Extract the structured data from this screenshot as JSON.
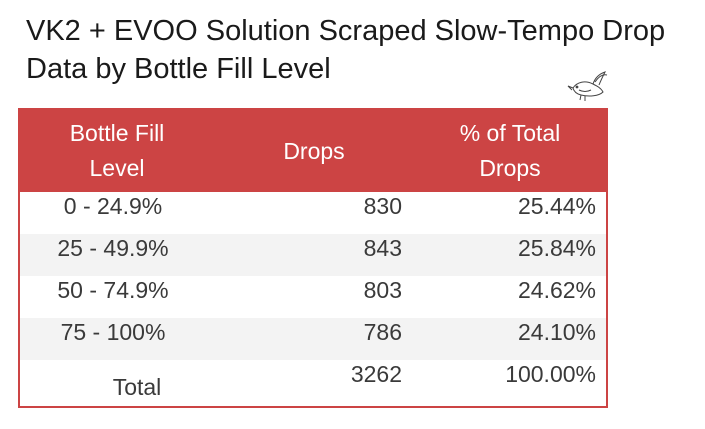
{
  "chart_data": {
    "type": "table",
    "title": "VK2 + EVOO Solution Scraped Slow-Tempo Drop Data by Bottle Fill Level",
    "columns": [
      "Bottle Fill Level",
      "Drops",
      "% of Total Drops"
    ],
    "rows": [
      {
        "level": "0 - 24.9%",
        "drops": "830",
        "pct": "25.44%"
      },
      {
        "level": "25 - 49.9%",
        "drops": "843",
        "pct": "25.84%"
      },
      {
        "level": "50 - 74.9%",
        "drops": "803",
        "pct": "24.62%"
      },
      {
        "level": "75 - 100%",
        "drops": "786",
        "pct": "24.10%"
      }
    ],
    "total": {
      "level": "Total",
      "drops": "3262",
      "pct": "100.00%"
    },
    "colors": {
      "header_bg": "#cc4444",
      "header_text": "#ffffff",
      "stripe": "#f3f3f3",
      "border": "#cc4444"
    }
  },
  "header": {
    "col_level_line1": "Bottle Fill",
    "col_level_line2": "Level",
    "col_drops": "Drops",
    "col_pct_line1": "% of Total",
    "col_pct_line2": "Drops"
  },
  "decoration": {
    "icon": "bird-icon"
  }
}
